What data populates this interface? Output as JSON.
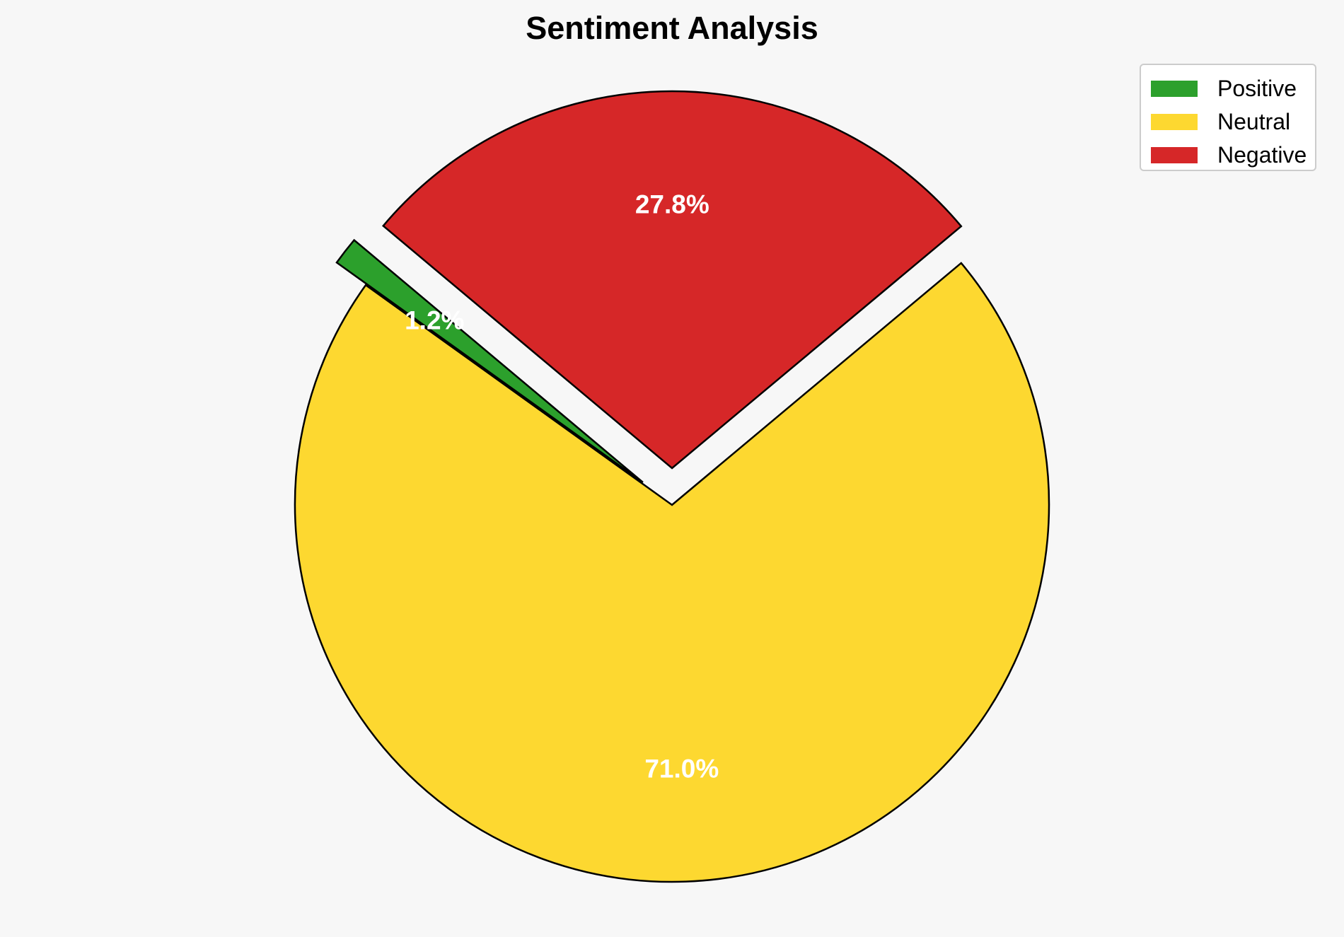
{
  "chart_data": {
    "type": "pie",
    "title": "Sentiment Analysis",
    "categories": [
      "Positive",
      "Neutral",
      "Negative"
    ],
    "values": [
      1.2,
      71.0,
      27.8
    ],
    "labels": [
      "1.2%",
      "71.0%",
      "27.8%"
    ],
    "colors": [
      "#2ca02c",
      "#fdd830",
      "#d62728"
    ],
    "exploded": [
      "Positive",
      "Negative"
    ],
    "legend_position": "top-right"
  }
}
